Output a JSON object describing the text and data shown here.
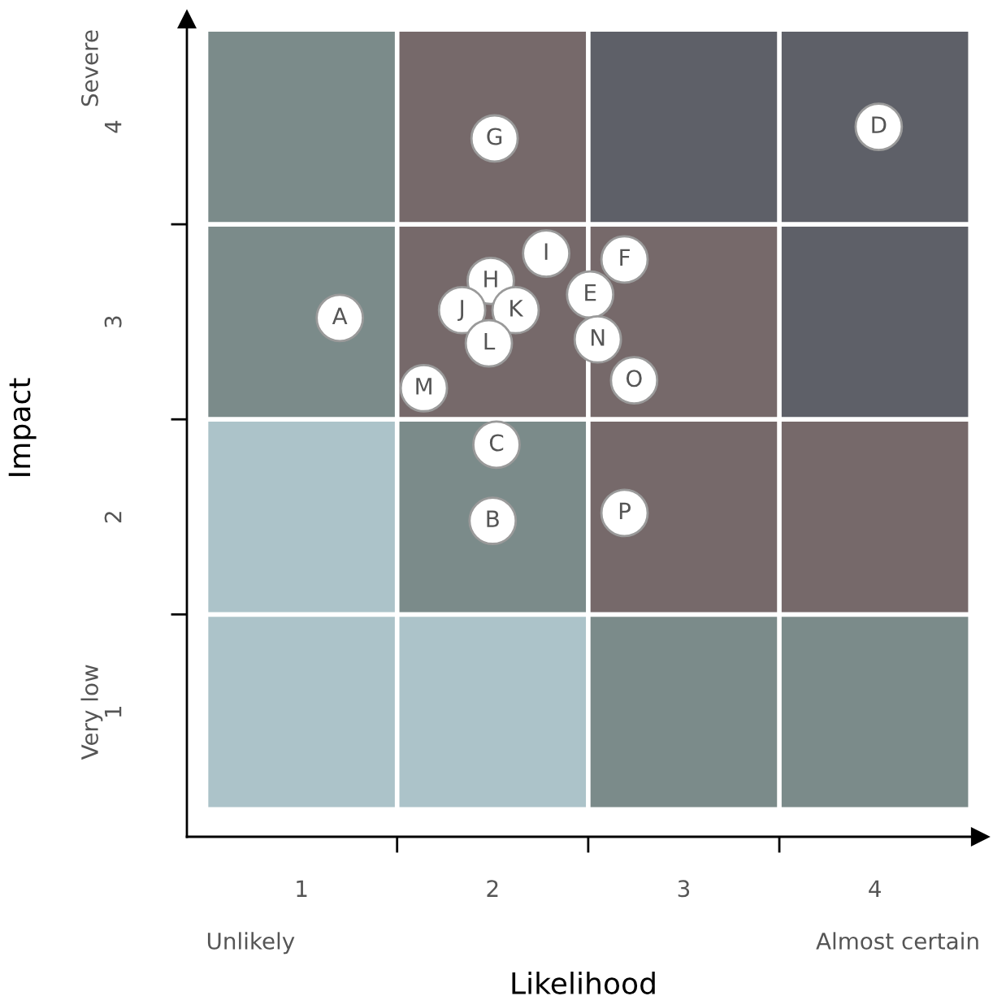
{
  "chart_data": {
    "type": "scatter",
    "xlabel": "Likelihood",
    "ylabel": "Impact",
    "x": [
      2.01,
      4.02,
      1.2,
      1.99,
      2.28,
      2.69,
      2.51,
      1.84,
      2.12,
      1.98,
      2.55,
      2.74,
      1.64,
      2.02,
      2.0,
      2.69
    ],
    "values": [
      3.94,
      4.0,
      3.02,
      3.21,
      3.35,
      3.32,
      3.14,
      3.06,
      3.06,
      2.89,
      2.91,
      2.7,
      2.66,
      2.37,
      1.98,
      2.02
    ],
    "value_labels": [
      "G",
      "D",
      "A",
      "H",
      "I",
      "F",
      "E",
      "J",
      "K",
      "L",
      "N",
      "O",
      "M",
      "C",
      "B",
      "P"
    ],
    "color": "#ffffff",
    "marker": "circle",
    "xlim": [
      0.4,
      4.55
    ],
    "ylim": [
      0.36,
      4.55
    ],
    "xticks": [
      1,
      2,
      3,
      4,
      {
        "value": 1.5,
        "label": null
      },
      {
        "value": 2.5,
        "label": null
      },
      {
        "value": 3.5,
        "label": null
      }
    ],
    "yticks": [
      1,
      2,
      3,
      4,
      {
        "value": 1.5,
        "label": null
      },
      {
        "value": 2.5,
        "label": null
      },
      {
        "value": 3.5,
        "label": null
      }
    ],
    "annotations": [
      "Unlikely",
      "Almost certain",
      "Very low",
      "Severe"
    ],
    "grid": false
  }
}
